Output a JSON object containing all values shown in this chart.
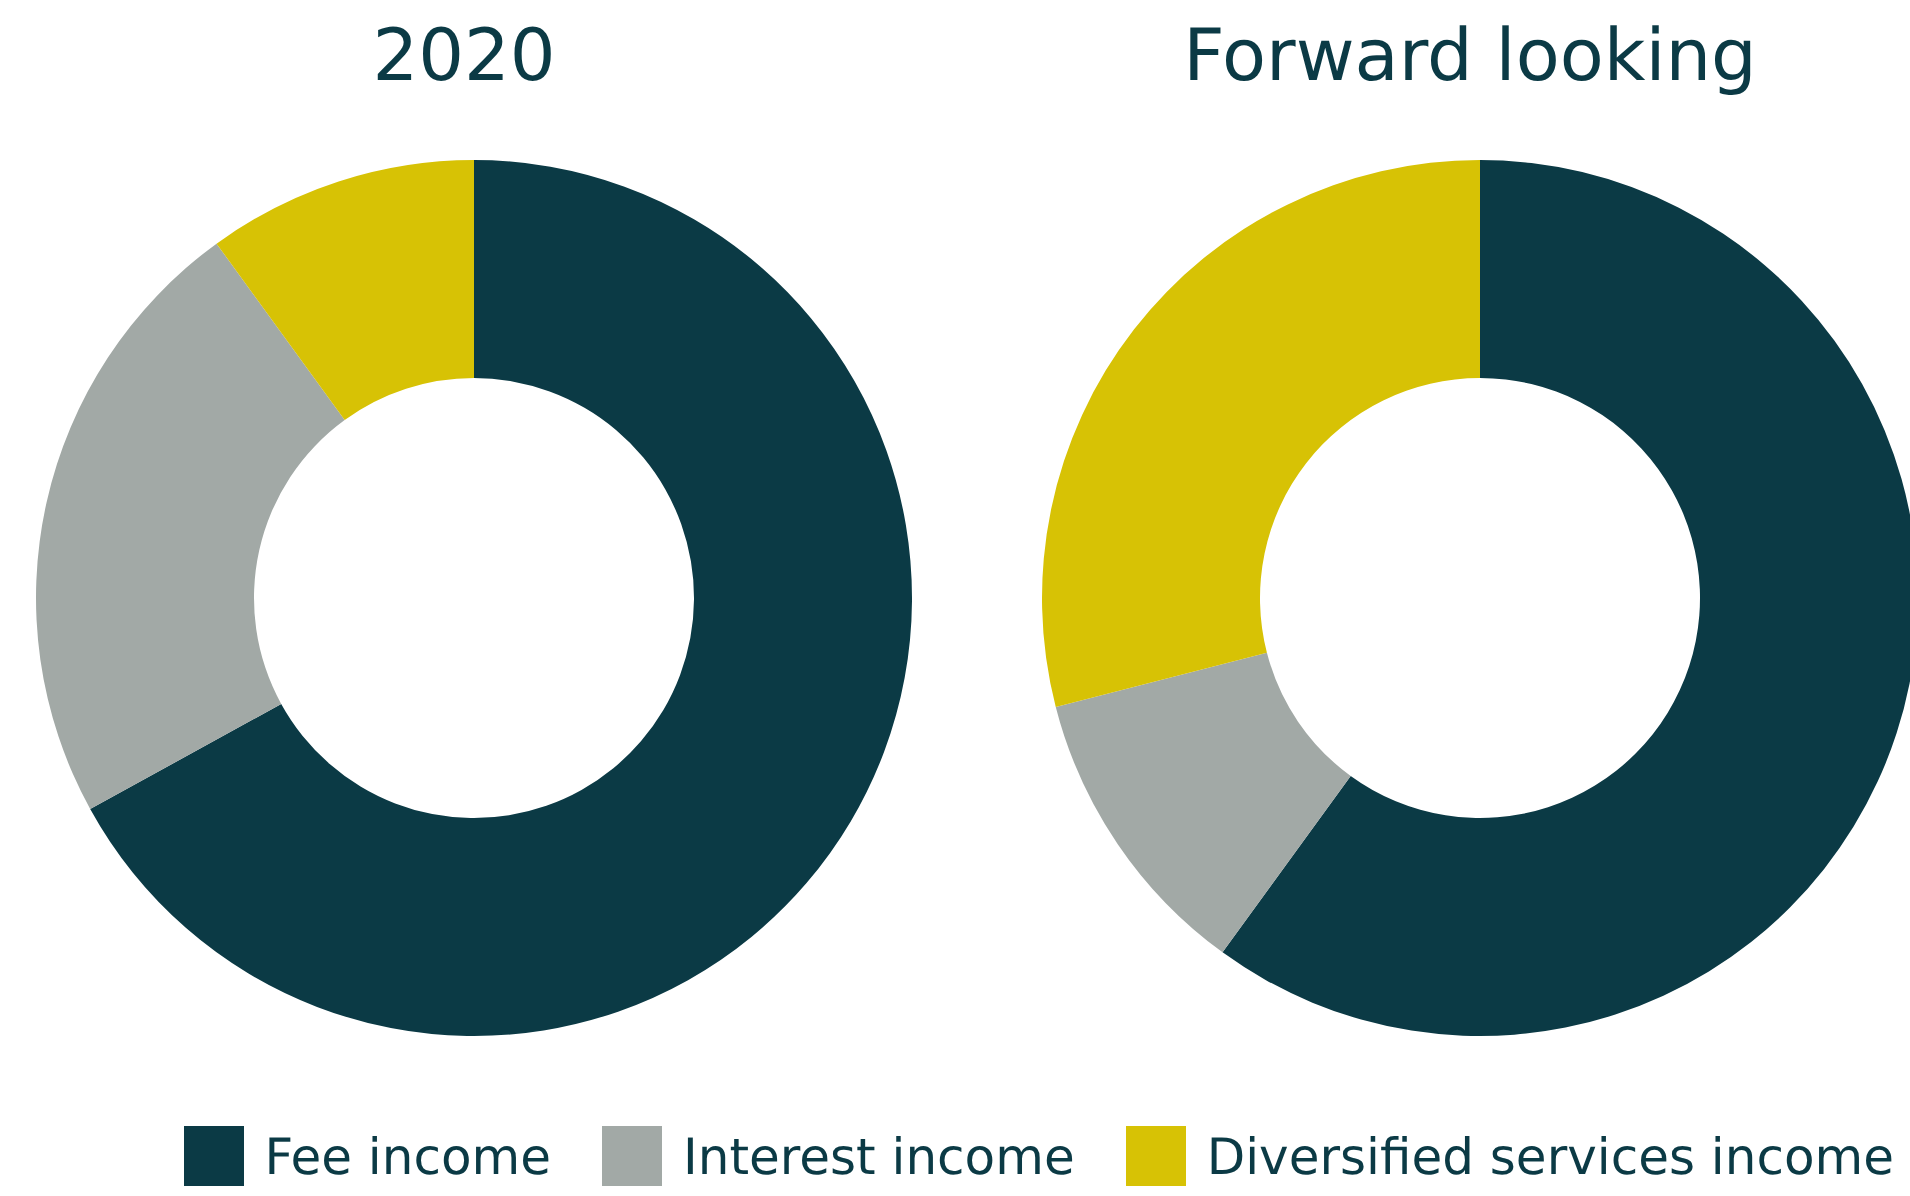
{
  "chart_data": [
    {
      "type": "donut",
      "title": "2020",
      "categories": [
        "Fee income",
        "Interest income",
        "Diversified services income"
      ],
      "values": [
        67,
        23,
        10
      ],
      "colors": [
        "#0b3a45",
        "#a2a9a6",
        "#d7c205"
      ],
      "legend": "bottom"
    },
    {
      "type": "donut",
      "title": "Forward looking",
      "categories": [
        null,
        null,
        null
      ],
      "values": [
        60,
        11,
        29
      ],
      "colors": [
        "#0b3a45",
        "#a2a9a6",
        "#d7c205"
      ]
    }
  ]
}
